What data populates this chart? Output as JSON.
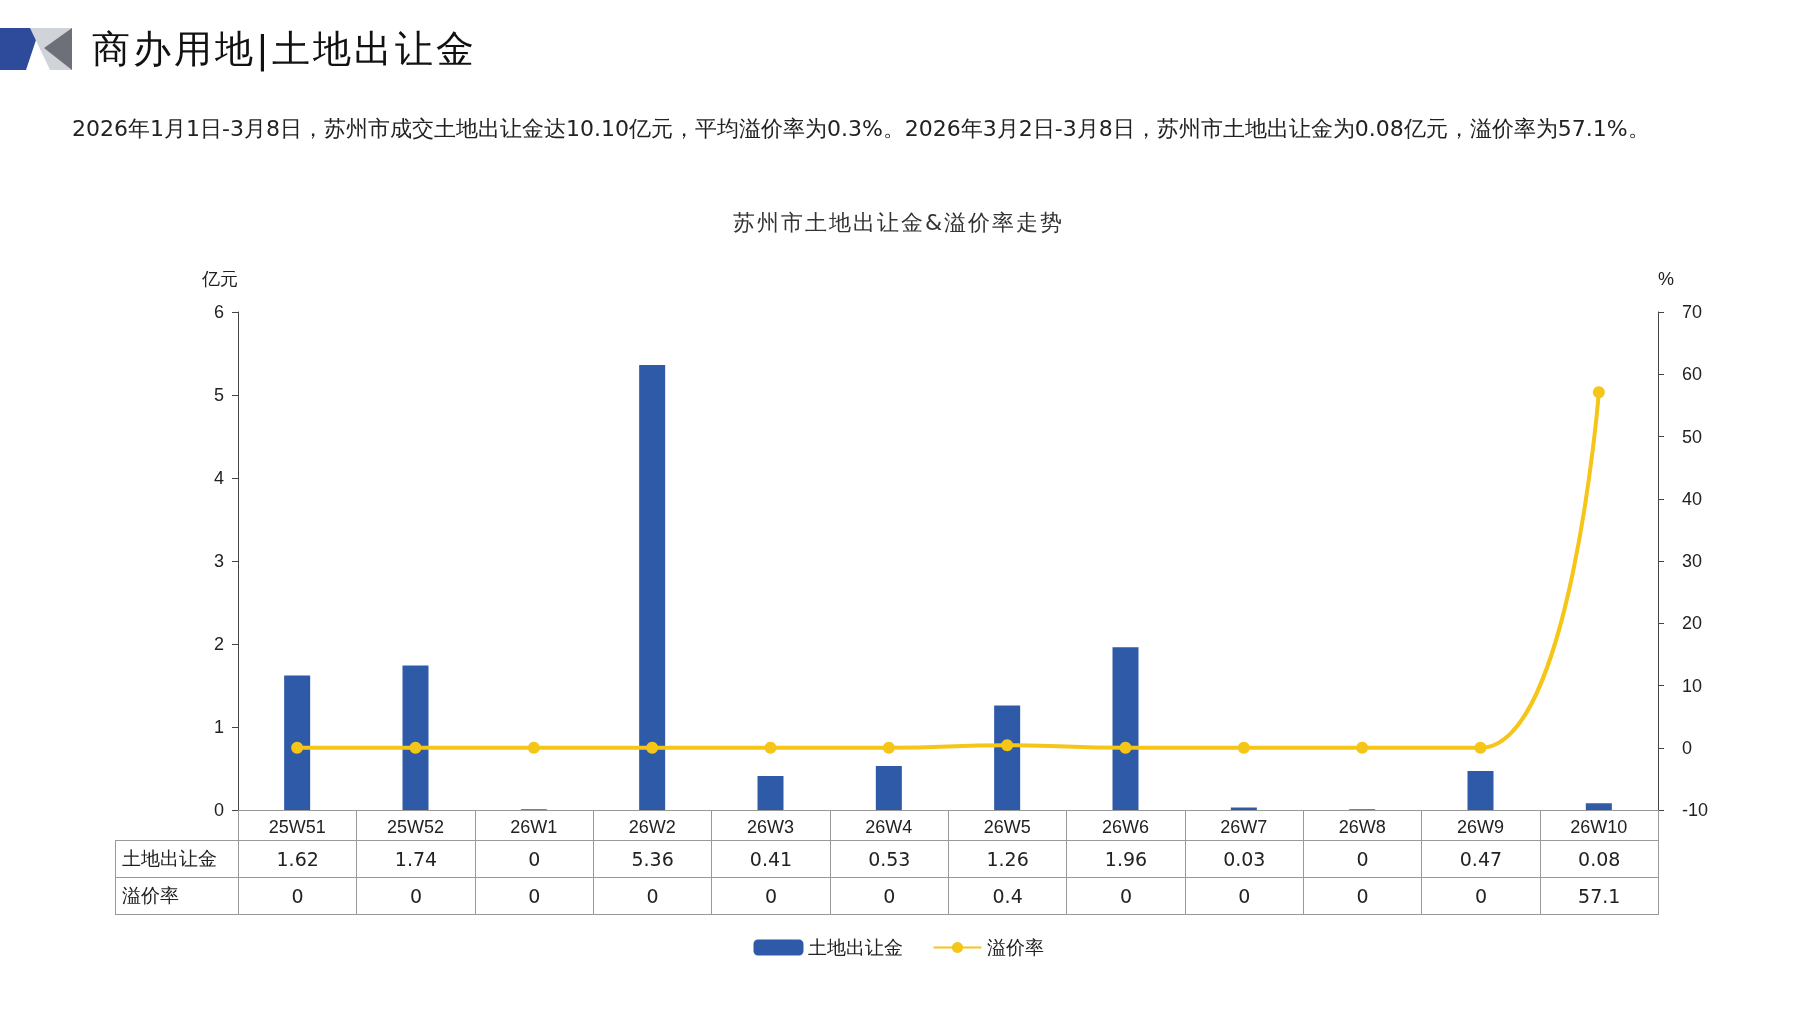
{
  "chart_data": {
    "type": "bar",
    "title": "商办用地|土地出让金",
    "subtitle": "苏州市土地出让金&溢价率走势",
    "annotations": [
      "2026年1月1日-3月8日，苏州市成交土地出让金达10.10亿元，平均溢价率为0.3%。2026年3月2日-3月8日，苏州市土地出让金为0.08亿元，溢价率为57.1%。"
    ],
    "ylabel": "亿元",
    "y2label": "%",
    "categories": [
      "25W51",
      "25W52",
      "26W1",
      "26W2",
      "26W3",
      "26W4",
      "26W5",
      "26W6",
      "26W7",
      "26W8",
      "26W9",
      "26W10"
    ],
    "series": [
      {
        "name": "土地出让金",
        "color": "#2e5aa8",
        "values": [
          1.62,
          1.74,
          0,
          5.36,
          0.41,
          0.53,
          1.26,
          1.96,
          0.03,
          0,
          0.47,
          0.08
        ]
      },
      {
        "name": "溢价率",
        "type": "line",
        "axis": "y2",
        "color": "#f5c518",
        "values": [
          0,
          0,
          0,
          0,
          0,
          0,
          0.4,
          0,
          0,
          0,
          0,
          57.1
        ]
      }
    ],
    "ylim": [
      0,
      6
    ],
    "yticks": [
      0,
      1,
      2,
      3,
      4,
      5,
      6
    ],
    "y2lim": [
      -10,
      70
    ],
    "y2ticks": [
      -10,
      0,
      10,
      20,
      30,
      40,
      50,
      60,
      70
    ],
    "grid": false,
    "legend": "bottom",
    "marker": "circle",
    "data_labels": true
  }
}
